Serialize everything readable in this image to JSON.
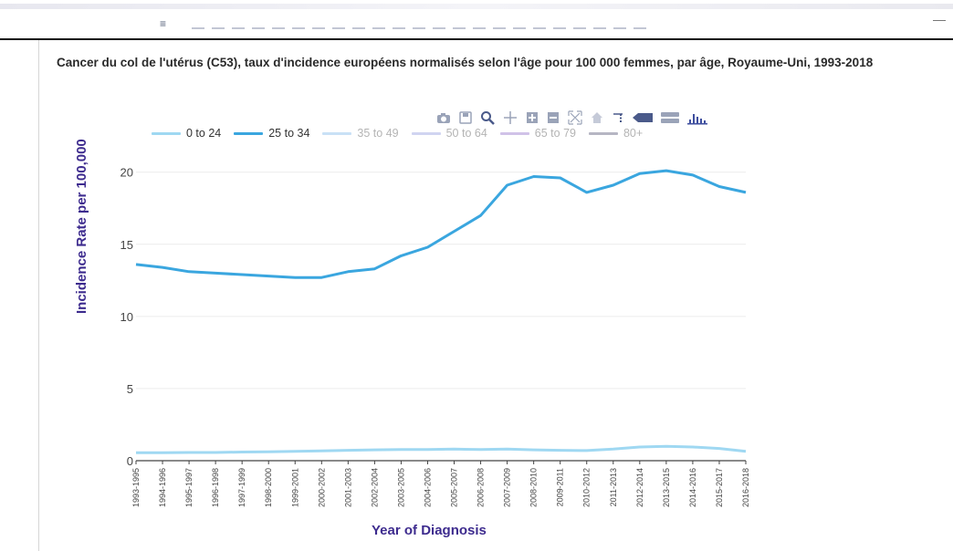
{
  "chart_data": {
    "type": "line",
    "title": "Cancer du col de l'utérus (C53), taux d'incidence européens normalisés selon l'âge pour 100 000 femmes, par âge, Royaume-Uni, 1993-2018",
    "xlabel": "Year of Diagnosis",
    "ylabel": "Incidence Rate per 100,000",
    "ylim": [
      0,
      21.5
    ],
    "yticks": [
      0,
      5,
      10,
      15,
      20
    ],
    "grid": true,
    "legend_position": "top",
    "categories": [
      "1993-1995",
      "1994-1996",
      "1995-1997",
      "1996-1998",
      "1997-1999",
      "1998-2000",
      "1999-2001",
      "2000-2002",
      "2001-2003",
      "2002-2004",
      "2003-2005",
      "2004-2006",
      "2005-2007",
      "2006-2008",
      "2007-2009",
      "2008-2010",
      "2009-2011",
      "2010-2012",
      "2011-2013",
      "2012-2014",
      "2013-2015",
      "2014-2016",
      "2015-2017",
      "2016-2018"
    ],
    "series": [
      {
        "name": "0 to 24",
        "color": "#9fd8f2",
        "visible": true,
        "values": [
          0.55,
          0.55,
          0.57,
          0.57,
          0.6,
          0.62,
          0.65,
          0.68,
          0.72,
          0.75,
          0.78,
          0.78,
          0.8,
          0.78,
          0.8,
          0.75,
          0.72,
          0.7,
          0.8,
          0.95,
          1.0,
          0.95,
          0.85,
          0.65
        ]
      },
      {
        "name": "25 to 34",
        "color": "#3aa6df",
        "visible": true,
        "values": [
          13.6,
          13.4,
          13.1,
          13.0,
          12.9,
          12.8,
          12.7,
          12.7,
          13.1,
          13.3,
          14.2,
          14.8,
          15.9,
          17.0,
          19.1,
          19.7,
          19.6,
          18.6,
          19.1,
          19.9,
          20.1,
          19.8,
          19.0,
          18.6
        ]
      },
      {
        "name": "35 to 49",
        "color": "#9cc9ef",
        "visible": false
      },
      {
        "name": "50 to 64",
        "color": "#aab0e6",
        "visible": false
      },
      {
        "name": "65 to 79",
        "color": "#a98fd6",
        "visible": false
      },
      {
        "name": "80+",
        "color": "#7a7a92",
        "visible": false
      }
    ]
  },
  "modebar": {
    "icons": [
      "camera-icon",
      "save-icon",
      "zoom-icon",
      "pan-icon",
      "zoom-in-icon",
      "zoom-out-icon",
      "autoscale-icon",
      "home-icon",
      "spike-lines-icon",
      "hover-closest-icon",
      "hover-compare-icon",
      "plotly-logo-icon"
    ]
  }
}
